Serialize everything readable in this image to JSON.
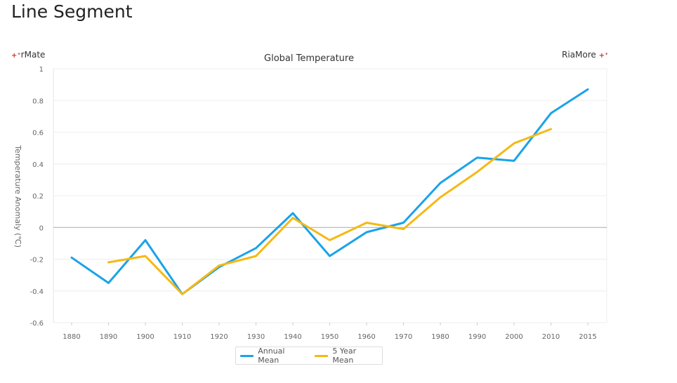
{
  "page": {
    "title": "Line Segment"
  },
  "corner_labels": {
    "left": "rMate",
    "right": "RiaMore"
  },
  "legend": [
    {
      "name": "Annual Mean",
      "color": "#1aa3e8"
    },
    {
      "name": "5 Year Mean",
      "color": "#f5b914"
    }
  ],
  "chart_data": {
    "type": "line",
    "title": "Global Temperature",
    "xlabel": "",
    "ylabel": "Temperature Anomaly (℃)",
    "categories": [
      "1880",
      "1890",
      "1900",
      "1910",
      "1920",
      "1930",
      "1940",
      "1950",
      "1960",
      "1970",
      "1980",
      "1990",
      "2000",
      "2010",
      "2015"
    ],
    "ylim": [
      -0.6,
      1
    ],
    "yticks": [
      1,
      0.8,
      0.6,
      0.4,
      0.2,
      0,
      -0.2,
      -0.4,
      -0.6
    ],
    "ytick_labels": [
      "1",
      "0.8",
      "0.6",
      "0.4",
      "0.2",
      "0",
      "-0.2",
      "-0.4",
      "-0.6"
    ],
    "grid": true,
    "legend_position": "bottom",
    "series": [
      {
        "name": "Annual Mean",
        "color": "#1aa3e8",
        "values": [
          -0.19,
          -0.35,
          -0.08,
          -0.42,
          -0.25,
          -0.13,
          0.09,
          -0.18,
          -0.03,
          0.03,
          0.28,
          0.44,
          0.42,
          0.72,
          0.87
        ]
      },
      {
        "name": "5 Year Mean",
        "color": "#f5b914",
        "values": [
          null,
          -0.22,
          -0.18,
          -0.42,
          -0.24,
          -0.18,
          0.06,
          -0.08,
          0.03,
          -0.01,
          0.19,
          0.35,
          0.53,
          0.62,
          null
        ]
      }
    ]
  }
}
